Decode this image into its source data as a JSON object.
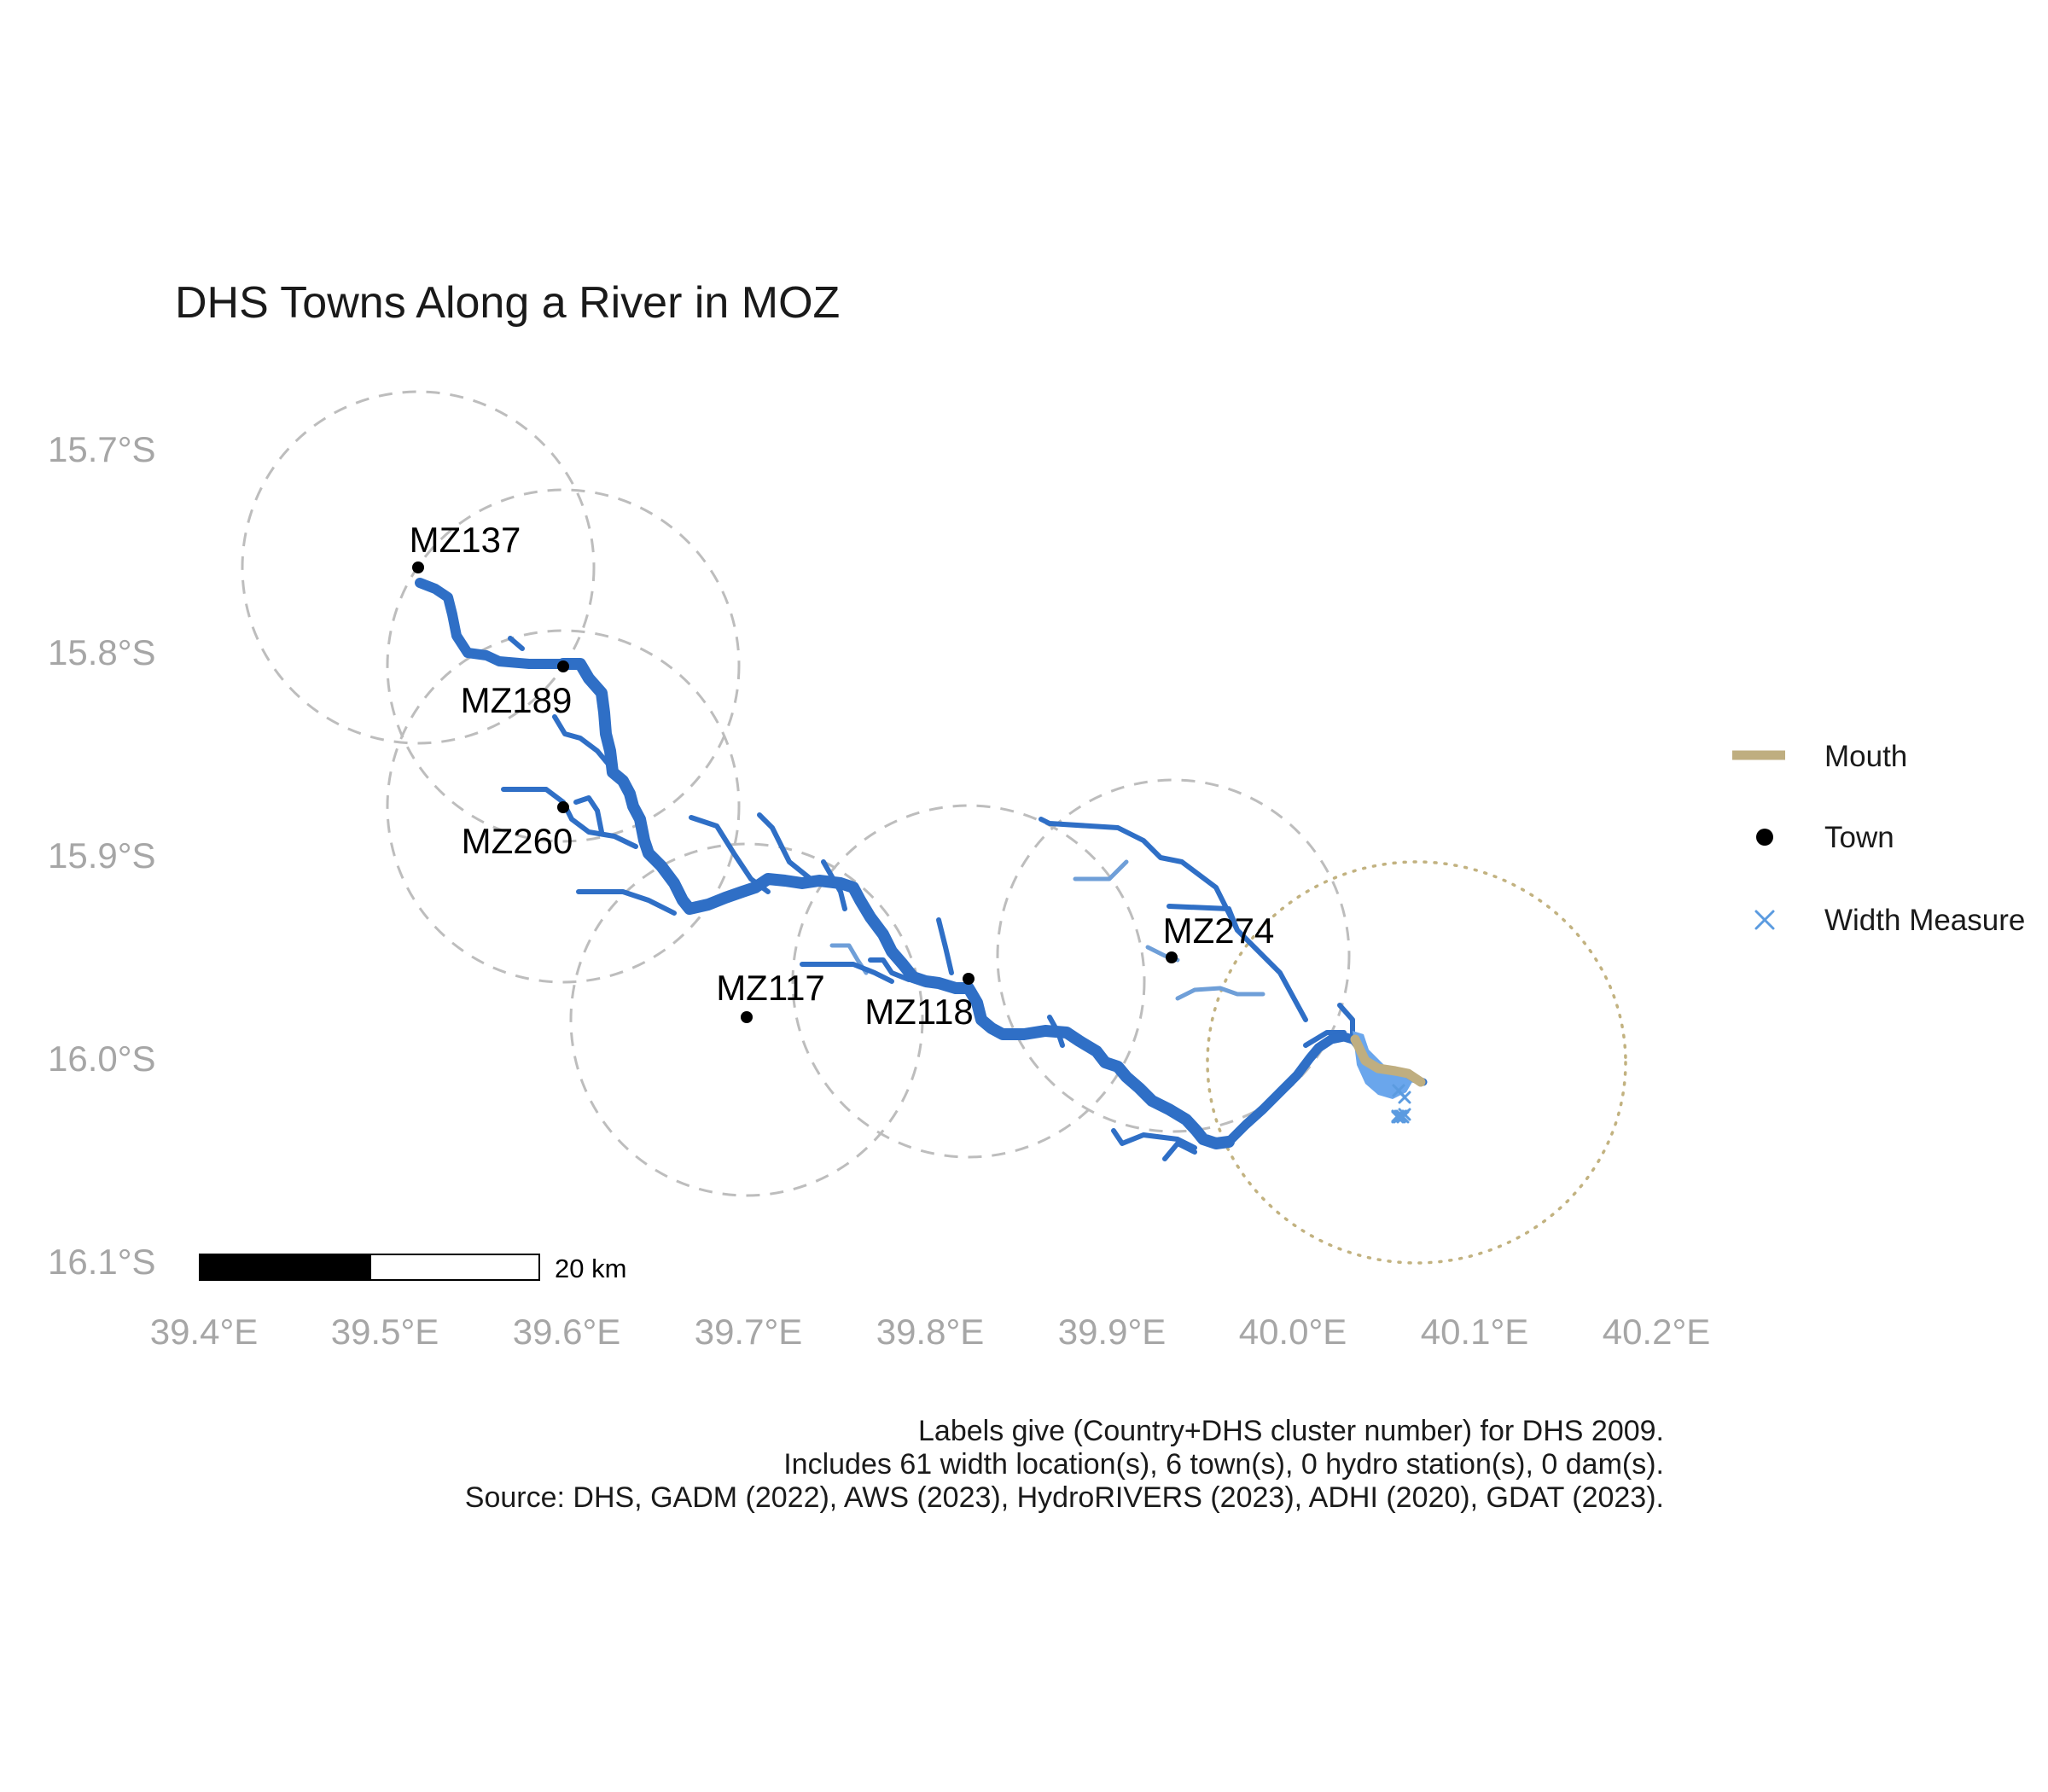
{
  "title": "DHS Towns Along a River in MOZ",
  "axes": {
    "x_ticks": [
      "39.4°E",
      "39.5°E",
      "39.6°E",
      "39.7°E",
      "39.8°E",
      "39.9°E",
      "40.0°E",
      "40.1°E",
      "40.2°E"
    ],
    "y_ticks": [
      "15.7°S",
      "15.8°S",
      "15.9°S",
      "16.0°S",
      "16.1°S"
    ]
  },
  "towns": [
    {
      "label": "MZ137",
      "lon": 39.52,
      "lat": -15.76
    },
    {
      "label": "MZ189",
      "lon": 39.6,
      "lat": -15.808
    },
    {
      "label": "MZ260",
      "lon": 39.6,
      "lat": -15.878
    },
    {
      "label": "MZ117",
      "lon": 39.7,
      "lat": -15.98
    },
    {
      "label": "MZ118",
      "lon": 39.82,
      "lat": -15.96
    },
    {
      "label": "MZ274",
      "lon": 39.93,
      "lat": -15.95
    }
  ],
  "legend": {
    "mouth": "Mouth",
    "town": "Town",
    "width_measure": "Width Measure"
  },
  "scale_bar": {
    "label": "20 km"
  },
  "caption": [
    "Labels give (Country+DHS cluster number) for DHS 2009.",
    "Includes 61 width location(s), 6 town(s), 0 hydro station(s), 0 dam(s).",
    "Source: DHS, GADM (2022), AWS (2023), HydroRIVERS (2023), ADHI (2020), GDAT (2023)."
  ],
  "colors": {
    "river": "#2f6fc6",
    "river_light": "#6f9fd8",
    "mouth": "#bfae80",
    "width_measure": "#5b9be0",
    "town": "#000000",
    "buffer": "#bdbdbd"
  }
}
